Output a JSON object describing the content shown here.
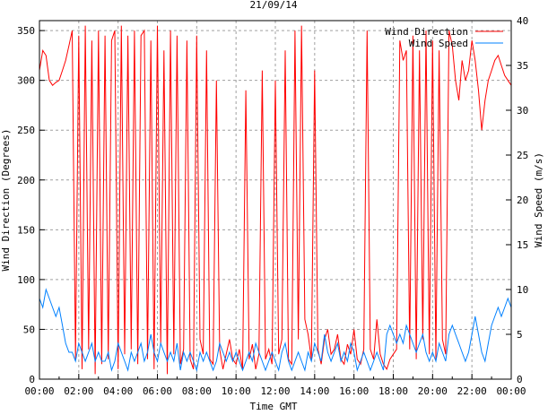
{
  "chart_data": {
    "type": "line",
    "title": "21/09/14",
    "xlabel": "Time GMT",
    "ylabel": "Wind Direction (Degrees)",
    "y2label": "Wind Speed (m/s)",
    "x_ticks": [
      "00:00",
      "02:00",
      "04:00",
      "06:00",
      "08:00",
      "10:00",
      "12:00",
      "14:00",
      "16:00",
      "18:00",
      "20:00",
      "22:00",
      "00:00"
    ],
    "y_ticks": [
      0,
      50,
      100,
      150,
      200,
      250,
      300,
      350
    ],
    "y2_ticks": [
      0,
      5,
      10,
      15,
      20,
      25,
      30,
      35,
      40
    ],
    "ylim": [
      0,
      360
    ],
    "y2lim": [
      0,
      40
    ],
    "xlim_hours": [
      0,
      24
    ],
    "sample_interval_minutes": 10,
    "grid": true,
    "legend_position": "top-right",
    "series": [
      {
        "name": "Wind Direction",
        "axis": "left",
        "color": "#ff0000",
        "values": [
          310,
          330,
          325,
          300,
          295,
          298,
          300,
          310,
          320,
          335,
          350,
          20,
          345,
          10,
          355,
          30,
          340,
          5,
          350,
          15,
          345,
          20,
          340,
          350,
          10,
          355,
          25,
          345,
          30,
          350,
          15,
          345,
          350,
          20,
          340,
          10,
          355,
          35,
          330,
          5,
          350,
          25,
          345,
          15,
          30,
          340,
          20,
          10,
          345,
          40,
          25,
          330,
          20,
          15,
          300,
          30,
          10,
          25,
          40,
          20,
          15,
          30,
          10,
          290,
          20,
          35,
          10,
          25,
          310,
          20,
          30,
          15,
          300,
          25,
          40,
          330,
          20,
          15,
          350,
          40,
          355,
          60,
          45,
          20,
          310,
          30,
          15,
          40,
          50,
          25,
          30,
          45,
          20,
          15,
          35,
          25,
          50,
          20,
          15,
          30,
          350,
          30,
          20,
          60,
          25,
          15,
          10,
          20,
          25,
          30,
          340,
          320,
          330,
          30,
          345,
          20,
          330,
          40,
          350,
          25,
          340,
          20,
          330,
          40,
          25,
          350,
          335,
          300,
          280,
          320,
          300,
          310,
          340,
          320,
          290,
          250,
          280,
          300,
          310,
          320,
          325,
          315,
          305,
          300,
          295
        ]
      },
      {
        "name": "Wind Speed",
        "axis": "right",
        "color": "#0080ff",
        "values": [
          9,
          8,
          10,
          9,
          8,
          7,
          8,
          6,
          4,
          3,
          3,
          2,
          4,
          3,
          2,
          3,
          4,
          2,
          3,
          2,
          2,
          3,
          1,
          2,
          4,
          3,
          2,
          1,
          3,
          2,
          3,
          4,
          2,
          3,
          5,
          3,
          2,
          4,
          3,
          2,
          3,
          2,
          4,
          1,
          3,
          2,
          3,
          2,
          1,
          3,
          2,
          3,
          2,
          1,
          2,
          4,
          3,
          2,
          3,
          2,
          3,
          2,
          1,
          2,
          3,
          2,
          4,
          3,
          2,
          1,
          2,
          3,
          2,
          1,
          3,
          4,
          2,
          1,
          2,
          3,
          2,
          1,
          3,
          2,
          4,
          3,
          2,
          5,
          3,
          2,
          3,
          4,
          2,
          3,
          2,
          4,
          3,
          1,
          2,
          3,
          2,
          1,
          2,
          3,
          2,
          1,
          5,
          6,
          5,
          4,
          5,
          4,
          6,
          5,
          4,
          3,
          4,
          5,
          3,
          2,
          3,
          2,
          4,
          3,
          2,
          5,
          6,
          5,
          4,
          3,
          2,
          3,
          5,
          7,
          5,
          3,
          2,
          4,
          6,
          7,
          8,
          7,
          8,
          9,
          8
        ]
      }
    ]
  }
}
